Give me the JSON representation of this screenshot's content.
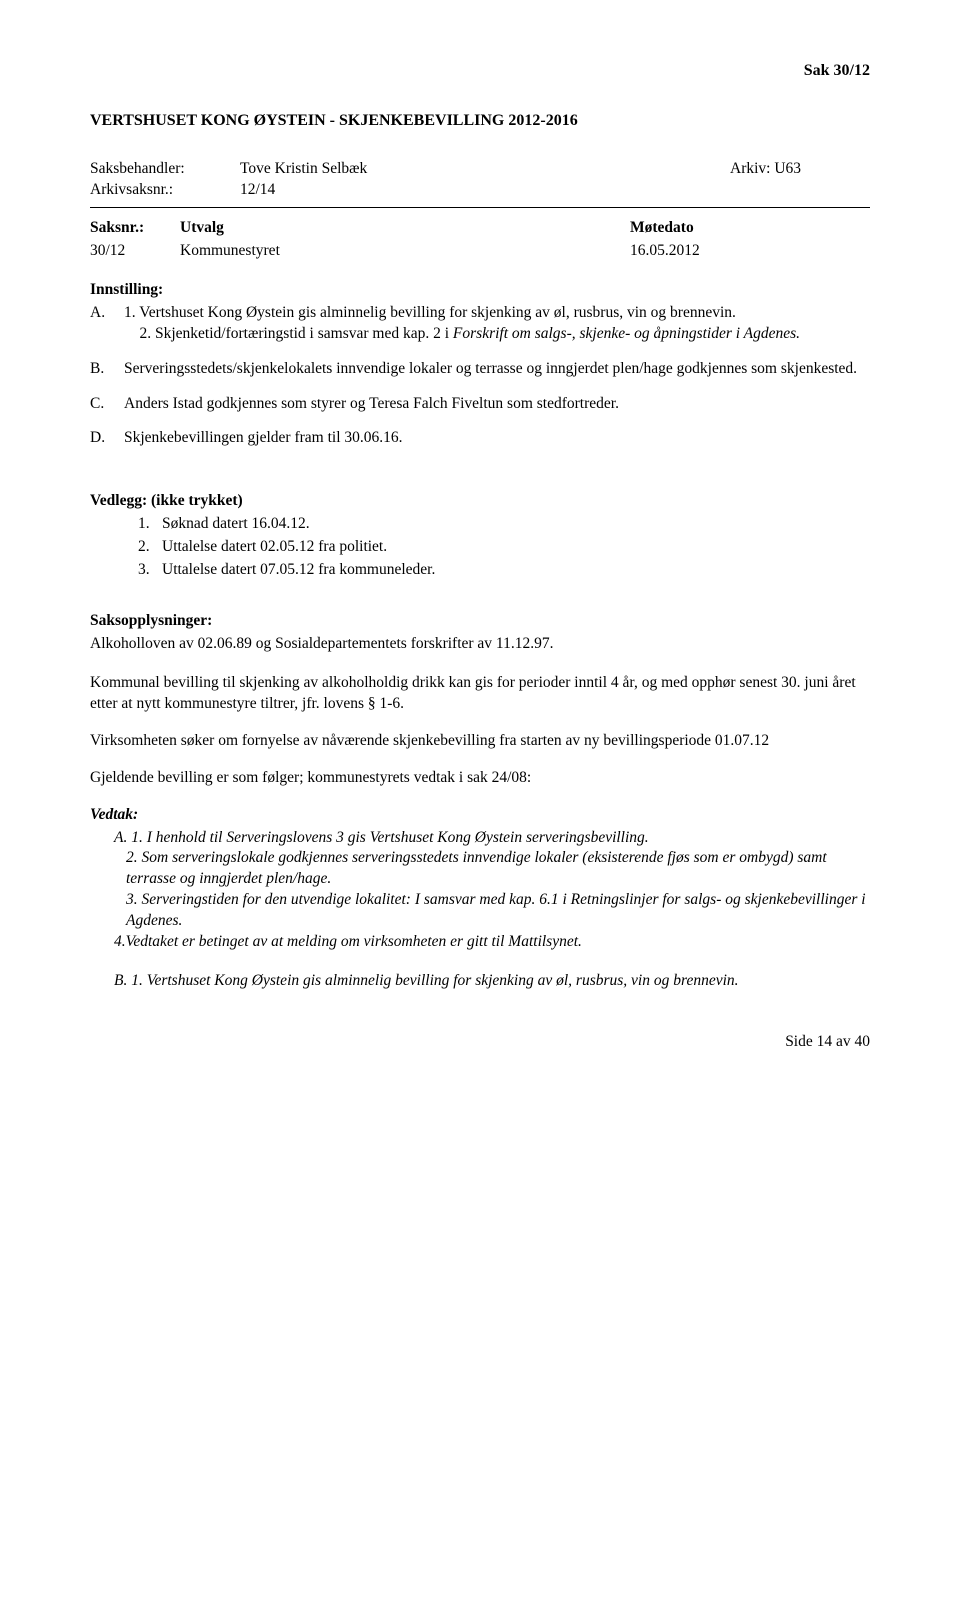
{
  "header": {
    "sak_label": "Sak  30/12"
  },
  "title": "VERTSHUSET KONG ØYSTEIN - SKJENKEBEVILLING 2012-2016",
  "meta": {
    "saksbehandler_label": "Saksbehandler:",
    "saksbehandler_value": "Tove Kristin Selbæk",
    "arkiv_label": "Arkiv: U63",
    "arkivsaksnr_label": "Arkivsaksnr.:",
    "arkivsaksnr_value": "12/14"
  },
  "utvalg": {
    "header_saksnr": "Saksnr.:",
    "header_utvalg": "Utvalg",
    "header_motedato": "Møtedato",
    "row_saksnr": "30/12",
    "row_utvalg": "Kommunestyret",
    "row_date": "16.05.2012"
  },
  "innstilling": {
    "header": "Innstilling:",
    "items": [
      {
        "marker": "A.",
        "parts": [
          {
            "text": "1. Vertshuset Kong Øystein gis alminnelig bevilling for skjenking av øl, rusbrus, vin og brennevin.",
            "italic": false
          },
          {
            "text": "2. Skjenketid/fortæringstid i samsvar med kap. 2 i Forskrift om salgs-, skjenke- og åpningstider i Agdenes.",
            "italic": true,
            "prefix": "    "
          }
        ]
      },
      {
        "marker": "B.",
        "text": "Serveringsstedets/skjenkelokalets innvendige lokaler og terrasse og inngjerdet plen/hage godkjennes som skjenkested."
      },
      {
        "marker": "C.",
        "text": "Anders Istad godkjennes som styrer og Teresa Falch Fiveltun som stedfortreder."
      },
      {
        "marker": "D.",
        "text": "Skjenkebevillingen gjelder fram til 30.06.16."
      }
    ]
  },
  "vedlegg": {
    "header": "Vedlegg: (ikke trykket)",
    "items": [
      {
        "num": "1.",
        "text": "Søknad datert 16.04.12."
      },
      {
        "num": "2.",
        "text": "Uttalelse datert 02.05.12 fra politiet."
      },
      {
        "num": "3.",
        "text": "Uttalelse datert 07.05.12 fra kommuneleder."
      }
    ]
  },
  "saksopplysninger": {
    "header": "Saksopplysninger:",
    "line1": "Alkoholloven av 02.06.89 og Sosialdepartementets forskrifter av 11.12.97.",
    "para2": "Kommunal bevilling til skjenking av alkoholholdig drikk kan gis for perioder inntil 4 år, og med opphør senest 30. juni året etter at nytt kommunestyre tiltrer, jfr. lovens § 1-6.",
    "para3": "Virksomheten søker om fornyelse av nåværende skjenkebevilling fra starten av ny bevillingsperiode 01.07.12",
    "para4": "Gjeldende bevilling er som følger; kommunestyrets vedtak i sak 24/08:"
  },
  "vedtak": {
    "header": "Vedtak:",
    "a1": "A.  1. I henhold til Serveringslovens 3 gis Vertshuset Kong Øystein serveringsbevilling.",
    "a2": " 2. Som serveringslokale godkjennes serveringsstedets innvendige lokaler (eksisterende fjøs som er ombygd) samt terrasse og inngjerdet plen/hage.",
    "a3": " 3. Serveringstiden for den utvendige lokalitet: I samsvar med kap. 6.1 i Retningslinjer for salgs- og skjenkebevillinger i Agdenes.",
    "a4": "4.Vedtaket er betinget av at melding om virksomheten er gitt til Mattilsynet.",
    "b1": "B.  1. Vertshuset Kong Øystein gis alminnelig bevilling for skjenking av øl, rusbrus, vin og brennevin."
  },
  "footer": {
    "text": "Side 14 av 40"
  }
}
